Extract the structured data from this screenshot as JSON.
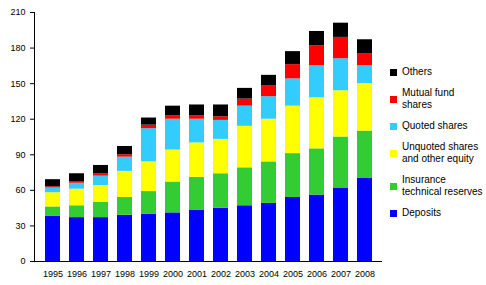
{
  "chart_data": {
    "type": "bar",
    "stacked": true,
    "grid": false,
    "legend": "right",
    "categories": [
      "1995",
      "1996",
      "1997",
      "1998",
      "1999",
      "2000",
      "2001",
      "2002",
      "2003",
      "2004",
      "2005",
      "2006",
      "2007",
      "2008"
    ],
    "ylim": [
      0,
      210
    ],
    "yticks": [
      0,
      30,
      60,
      90,
      120,
      150,
      180,
      210
    ],
    "series": [
      {
        "name": "Deposits",
        "color": "#0000ff",
        "values": [
          38,
          37,
          37,
          39,
          40,
          41,
          43,
          45,
          47,
          49,
          54,
          56,
          62,
          70
        ]
      },
      {
        "name": "Insurance technical reserves",
        "color": "#33cc33",
        "values": [
          8,
          10,
          13,
          15,
          19,
          26,
          28,
          29,
          32,
          35,
          37,
          39,
          43,
          40
        ]
      },
      {
        "name": "Unquoted shares and other equity",
        "color": "#ffff00",
        "values": [
          12,
          14,
          14,
          22,
          25,
          27,
          29,
          29,
          35,
          36,
          40,
          43,
          39,
          40
        ]
      },
      {
        "name": "Quoted shares",
        "color": "#33ccff",
        "values": [
          4,
          5,
          8,
          12,
          28,
          26,
          20,
          16,
          17,
          19,
          23,
          27,
          27,
          15
        ]
      },
      {
        "name": "Mutual fund shares",
        "color": "#ff0000",
        "values": [
          1,
          1,
          2,
          2,
          3,
          3,
          3,
          3,
          6,
          9,
          12,
          17,
          18,
          10
        ]
      },
      {
        "name": "Others",
        "color": "#000000",
        "values": [
          6,
          7,
          7,
          7,
          6,
          8,
          9,
          10,
          9,
          9,
          11,
          12,
          12,
          12
        ]
      }
    ]
  }
}
